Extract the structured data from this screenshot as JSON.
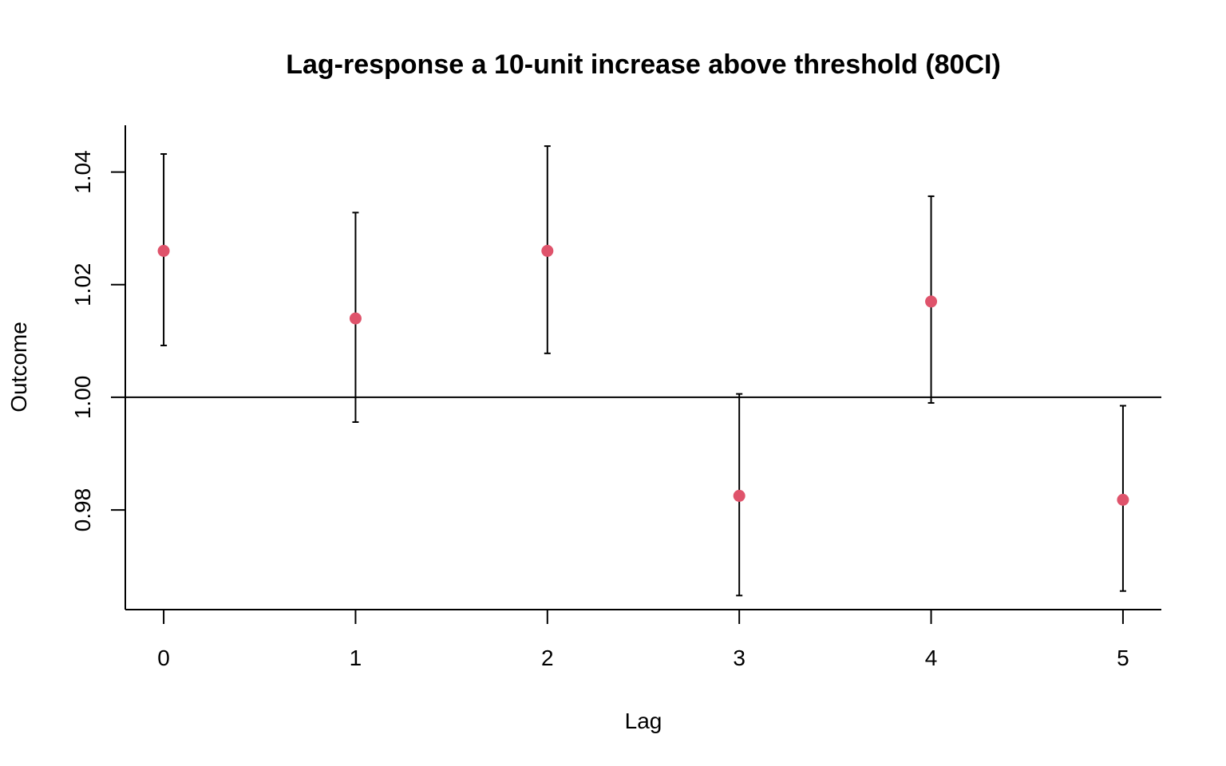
{
  "chart_data": {
    "type": "scatter",
    "title": "Lag-response a 10-unit increase above threshold (80CI)",
    "xlabel": "Lag",
    "ylabel": "Outcome",
    "x": [
      0,
      1,
      2,
      3,
      4,
      5
    ],
    "estimate": [
      1.026,
      1.014,
      1.026,
      0.9825,
      1.017,
      0.9818
    ],
    "lower": [
      1.0092,
      0.9956,
      1.0078,
      0.9648,
      0.999,
      0.9656
    ],
    "upper": [
      1.0432,
      1.0328,
      1.0446,
      1.0006,
      1.0357,
      0.9985
    ],
    "xticks": [
      "0",
      "1",
      "2",
      "3",
      "4",
      "5"
    ],
    "yticks": [
      0.98,
      1.0,
      1.02,
      1.04
    ],
    "ytick_labels": [
      "0.98",
      "1.00",
      "1.02",
      "1.04"
    ],
    "xlim": [
      -0.2,
      5.2
    ],
    "ylim": [
      0.9623,
      1.0483
    ],
    "reference_line": 1.0,
    "point_color": "#DF536B",
    "grid": false
  }
}
